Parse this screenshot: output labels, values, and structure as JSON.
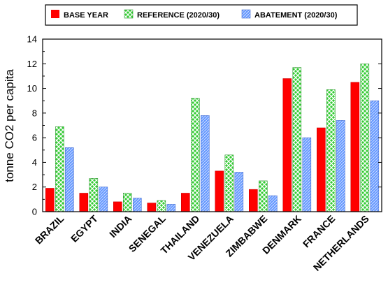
{
  "chart_data": {
    "type": "bar",
    "categories": [
      "BRAZIL",
      "EGYPT",
      "INDIA",
      "SENEGAL",
      "THAILAND",
      "VENEZUELA",
      "ZIMBABWE",
      "DENMARK",
      "FRANCE",
      "NETHERLANDS"
    ],
    "series": [
      {
        "name": "BASE YEAR",
        "values": [
          1.9,
          1.5,
          0.8,
          0.7,
          1.5,
          3.3,
          1.8,
          10.8,
          6.8,
          10.5
        ],
        "color": "#ff0000",
        "pattern": "solid"
      },
      {
        "name": "REFERENCE (2020/30)",
        "values": [
          6.9,
          2.7,
          1.5,
          0.9,
          9.2,
          4.6,
          2.5,
          11.7,
          9.9,
          12.0
        ],
        "color": "#33cc33",
        "pattern": "crosshatch"
      },
      {
        "name": "ABATEMENT (2020/30)",
        "values": [
          5.2,
          2.0,
          1.1,
          0.6,
          7.8,
          3.2,
          1.3,
          6.0,
          7.4,
          9.0
        ],
        "color": "#6699ff",
        "pattern": "fine-hatch"
      }
    ],
    "title": "",
    "xlabel": "",
    "ylabel": "tonne CO2 per capita",
    "ylim": [
      0,
      14
    ],
    "yticks": [
      "0",
      "2",
      "4",
      "6",
      "8",
      "10",
      "12",
      "14"
    ],
    "grid": false,
    "legend_position": "top"
  }
}
